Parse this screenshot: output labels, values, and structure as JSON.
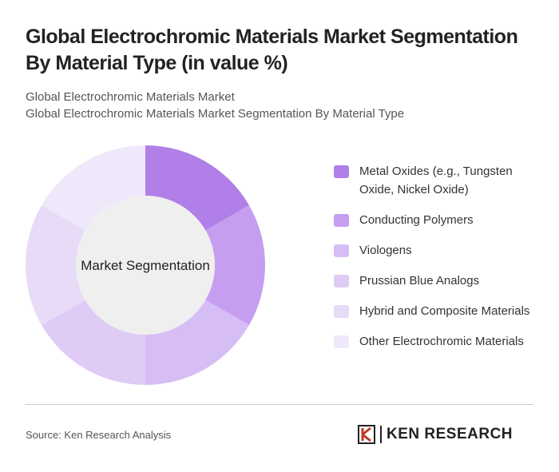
{
  "chart_data": {
    "type": "donut",
    "title": "Global Electrochromic Materials Market Segmentation By Material Type (in value %)",
    "subtitle": [
      "Global Electrochromic Materials Market",
      "Global Electrochromic Materials Market Segmentation By Material Type"
    ],
    "center_label": "Market Segmentation",
    "categories": [
      "Metal Oxides (e.g., Tungsten Oxide, Nickel Oxide)",
      "Conducting Polymers",
      "Viologens",
      "Prussian Blue Analogs",
      "Hybrid and Composite Materials",
      "Other Electrochromic Materials"
    ],
    "values": [
      16.7,
      16.7,
      16.7,
      16.7,
      16.7,
      16.7
    ],
    "colors": [
      "#b07fe8",
      "#c59ef0",
      "#d7bdf5",
      "#dfcbf6",
      "#e7dbf8",
      "#efe8fa"
    ],
    "legend": "right",
    "source": "Source: Ken Research Analysis",
    "brand": "KEN RESEARCH"
  }
}
